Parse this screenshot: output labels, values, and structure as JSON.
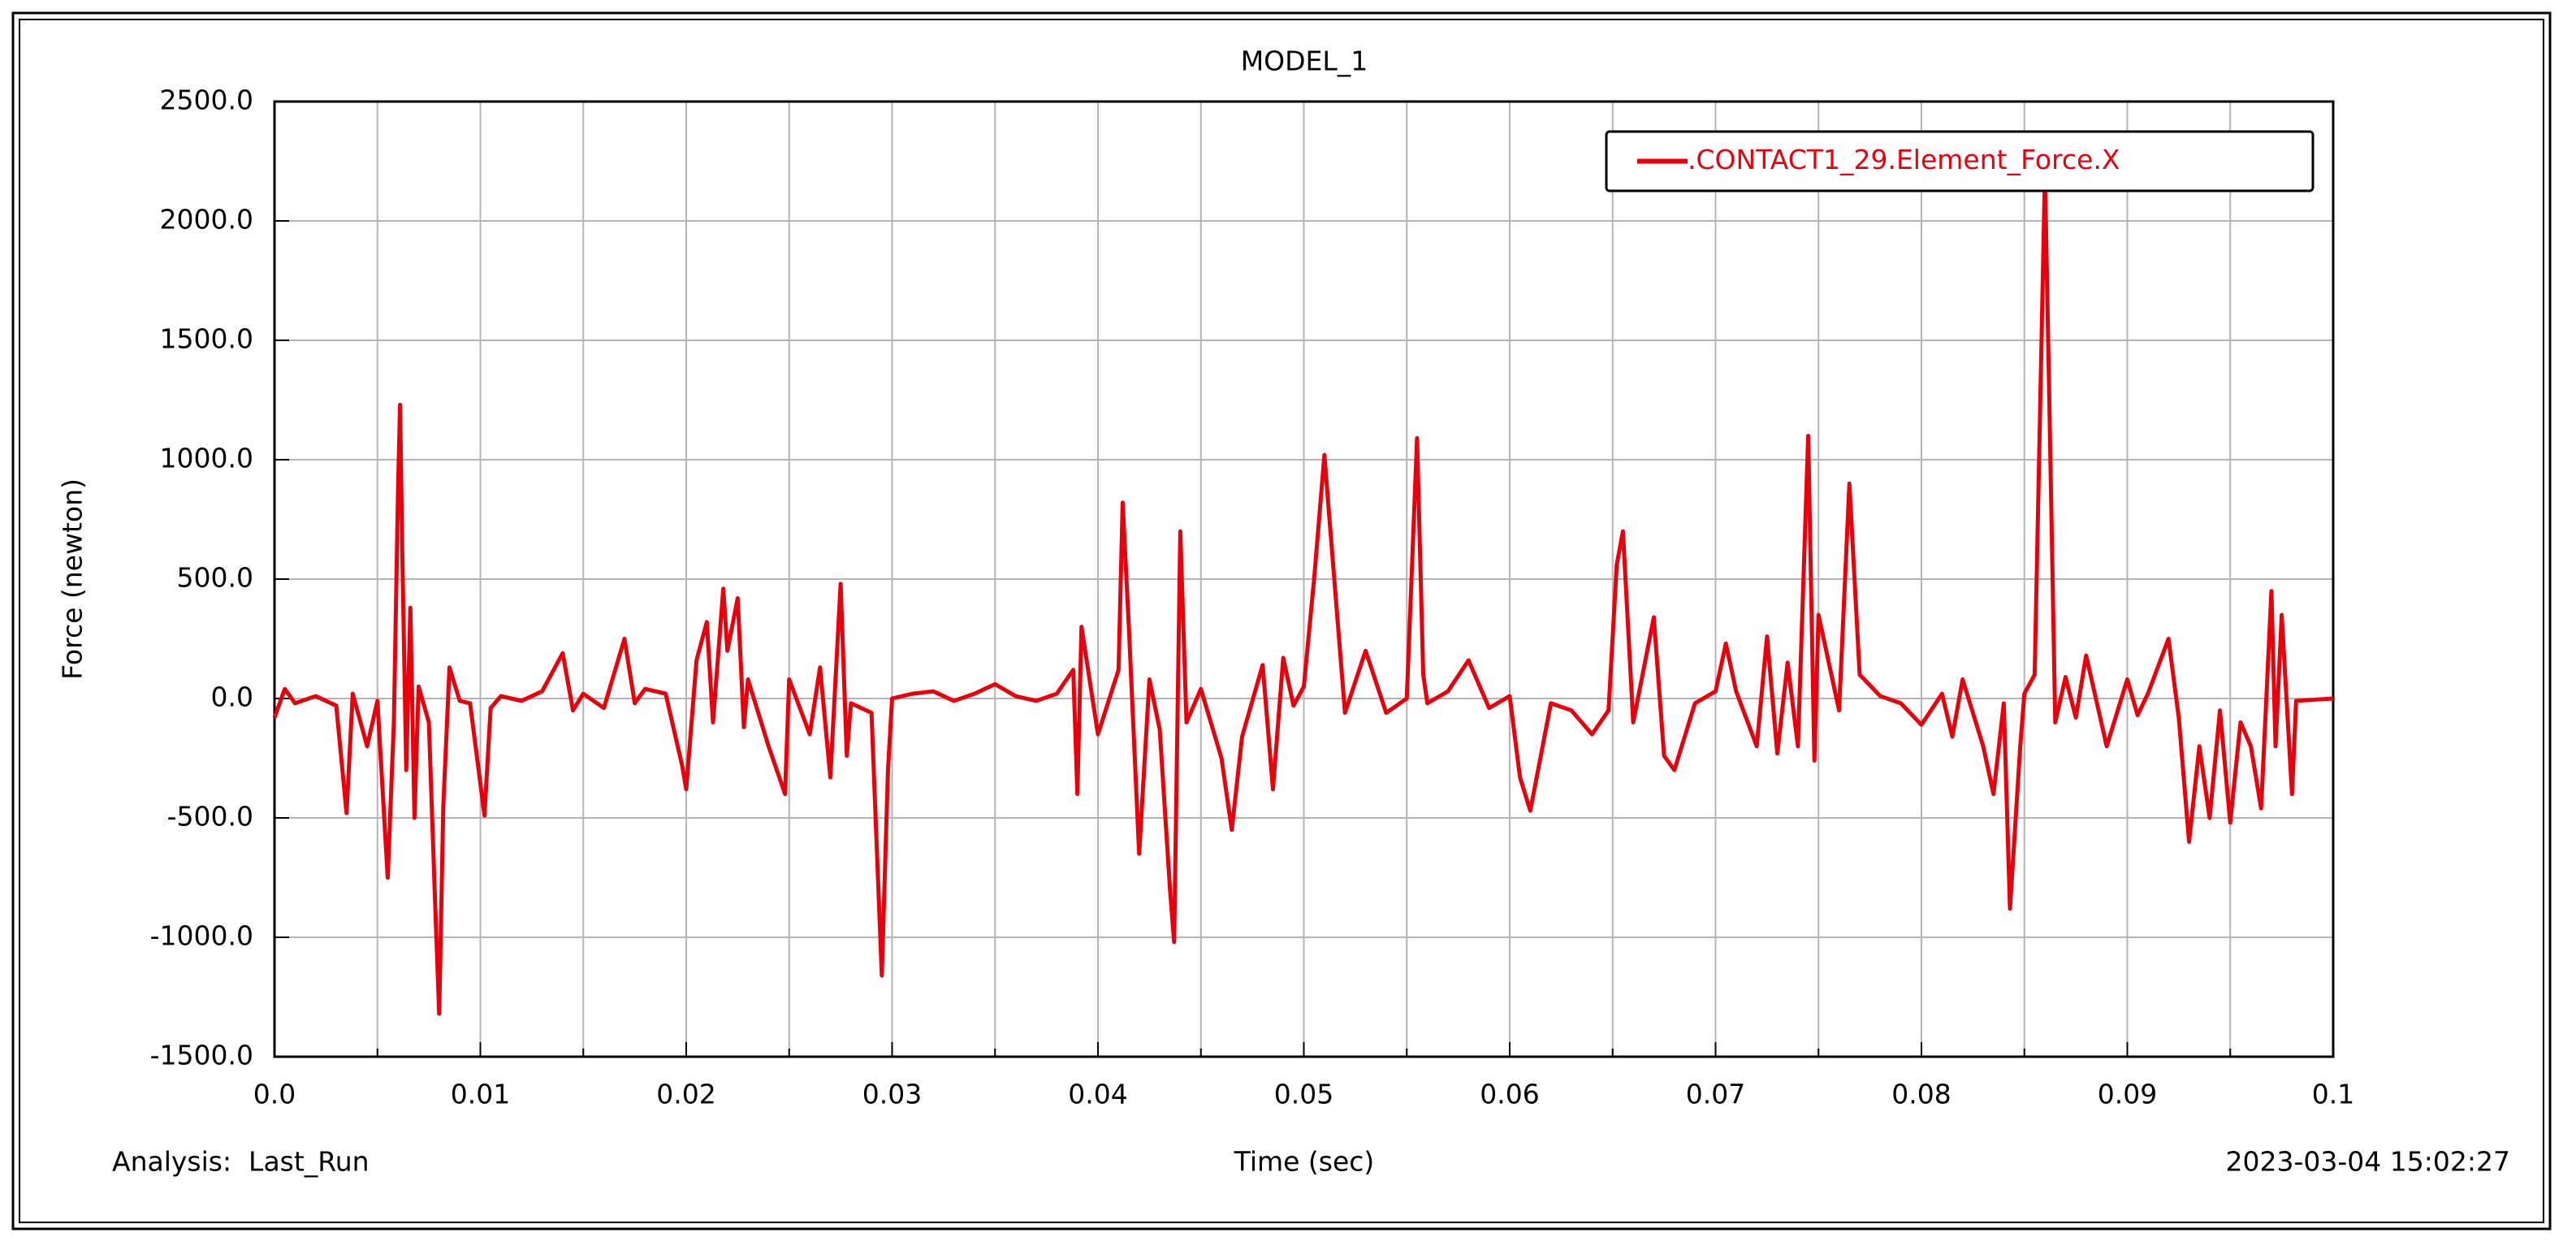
{
  "chart_data": {
    "type": "line",
    "title": "MODEL_1",
    "x_label": "Time (sec)",
    "y_label": "Force (newton)",
    "footer_left": "Analysis:  Last_Run",
    "footer_right": "2023-03-04 15:02:27",
    "x": [
      0.0,
      0.0005,
      0.001,
      0.002,
      0.003,
      0.0035,
      0.0038,
      0.0045,
      0.005,
      0.0055,
      0.0058,
      0.006,
      0.0061,
      0.0062,
      0.0064,
      0.0066,
      0.0068,
      0.007,
      0.0075,
      0.0078,
      0.008,
      0.0082,
      0.0085,
      0.009,
      0.0095,
      0.0102,
      0.0105,
      0.011,
      0.012,
      0.013,
      0.014,
      0.0145,
      0.015,
      0.016,
      0.017,
      0.0175,
      0.018,
      0.019,
      0.0198,
      0.02,
      0.0205,
      0.021,
      0.0213,
      0.0218,
      0.022,
      0.0225,
      0.0228,
      0.023,
      0.024,
      0.0248,
      0.025,
      0.026,
      0.0265,
      0.027,
      0.0275,
      0.0278,
      0.028,
      0.029,
      0.0295,
      0.0298,
      0.03,
      0.031,
      0.032,
      0.033,
      0.034,
      0.035,
      0.036,
      0.037,
      0.038,
      0.0388,
      0.039,
      0.0392,
      0.04,
      0.041,
      0.0412,
      0.0415,
      0.042,
      0.0425,
      0.043,
      0.0435,
      0.0437,
      0.044,
      0.0443,
      0.045,
      0.046,
      0.0465,
      0.047,
      0.048,
      0.0485,
      0.049,
      0.0495,
      0.05,
      0.0505,
      0.051,
      0.0512,
      0.052,
      0.053,
      0.054,
      0.055,
      0.0555,
      0.0558,
      0.056,
      0.057,
      0.058,
      0.059,
      0.06,
      0.0605,
      0.061,
      0.062,
      0.063,
      0.064,
      0.0648,
      0.0652,
      0.0655,
      0.066,
      0.067,
      0.0675,
      0.068,
      0.069,
      0.07,
      0.0705,
      0.071,
      0.072,
      0.0725,
      0.073,
      0.0735,
      0.074,
      0.0745,
      0.0748,
      0.075,
      0.076,
      0.0765,
      0.077,
      0.078,
      0.079,
      0.08,
      0.081,
      0.0815,
      0.082,
      0.083,
      0.0835,
      0.084,
      0.0843,
      0.0848,
      0.085,
      0.0855,
      0.086,
      0.0862,
      0.0865,
      0.087,
      0.0875,
      0.088,
      0.089,
      0.0895,
      0.09,
      0.0905,
      0.091,
      0.092,
      0.0925,
      0.093,
      0.0935,
      0.094,
      0.0945,
      0.095,
      0.0955,
      0.096,
      0.0965,
      0.097,
      0.0972,
      0.0975,
      0.098,
      0.0982,
      0.1
    ],
    "series": [
      {
        "name": ".CONTACT1_29.Element_Force.X",
        "color": "#e8000b",
        "values": [
          -80,
          40,
          -20,
          10,
          -30,
          -480,
          20,
          -200,
          -10,
          -750,
          -100,
          870,
          1230,
          650,
          -300,
          380,
          -500,
          50,
          -100,
          -850,
          -1320,
          -450,
          130,
          -10,
          -20,
          -490,
          -40,
          10,
          -10,
          30,
          190,
          -50,
          20,
          -40,
          250,
          -20,
          40,
          20,
          -280,
          -380,
          160,
          320,
          -100,
          460,
          200,
          420,
          -120,
          80,
          -200,
          -400,
          80,
          -150,
          130,
          -330,
          480,
          -240,
          -20,
          -60,
          -1160,
          -300,
          0,
          20,
          30,
          -10,
          20,
          60,
          10,
          -10,
          20,
          120,
          -400,
          300,
          -150,
          120,
          820,
          300,
          -650,
          80,
          -130,
          -800,
          -1020,
          700,
          -100,
          40,
          -250,
          -550,
          -160,
          140,
          -380,
          170,
          -30,
          50,
          500,
          1020,
          800,
          -60,
          200,
          -60,
          0,
          1090,
          100,
          -20,
          30,
          160,
          -40,
          10,
          -330,
          -470,
          -20,
          -50,
          -150,
          -50,
          560,
          700,
          -100,
          340,
          -240,
          -300,
          -20,
          30,
          230,
          30,
          -200,
          260,
          -230,
          150,
          -200,
          1100,
          -260,
          350,
          -50,
          900,
          100,
          10,
          -20,
          -110,
          20,
          -160,
          80,
          -200,
          -400,
          -20,
          -880,
          -200,
          20,
          100,
          2200,
          1300,
          -100,
          90,
          -80,
          180,
          -200,
          -60,
          80,
          -70,
          20,
          250,
          -80,
          -600,
          -200,
          -500,
          -50,
          -520,
          -100,
          -200,
          -460,
          450,
          -200,
          350,
          -400,
          -10,
          0
        ]
      }
    ],
    "xlim": [
      0,
      0.1
    ],
    "xticks": [
      {
        "value": 0,
        "label": "0.0"
      },
      0.01,
      0.02,
      0.03,
      0.04,
      0.05,
      0.06,
      0.07,
      0.08,
      0.09,
      0.1
    ],
    "x_minor_ticks": [
      0.005,
      0.015,
      0.025,
      0.035,
      0.045,
      0.055,
      0.065,
      0.075,
      0.085,
      0.095
    ],
    "ylim": [
      -1500,
      2500
    ],
    "yticks": [
      {
        "value": -1500,
        "label": "-1500.0"
      },
      {
        "value": -1000,
        "label": "-1000.0"
      },
      {
        "value": -500,
        "label": "-500.0"
      },
      {
        "value": 0,
        "label": "0.0"
      },
      {
        "value": 500,
        "label": "500.0"
      },
      {
        "value": 1000,
        "label": "1000.0"
      },
      {
        "value": 1500,
        "label": "1500.0"
      },
      {
        "value": 2000,
        "label": "2000.0"
      },
      {
        "value": 2500,
        "label": "2500.0"
      }
    ],
    "grid": true,
    "legend": "upper right"
  }
}
